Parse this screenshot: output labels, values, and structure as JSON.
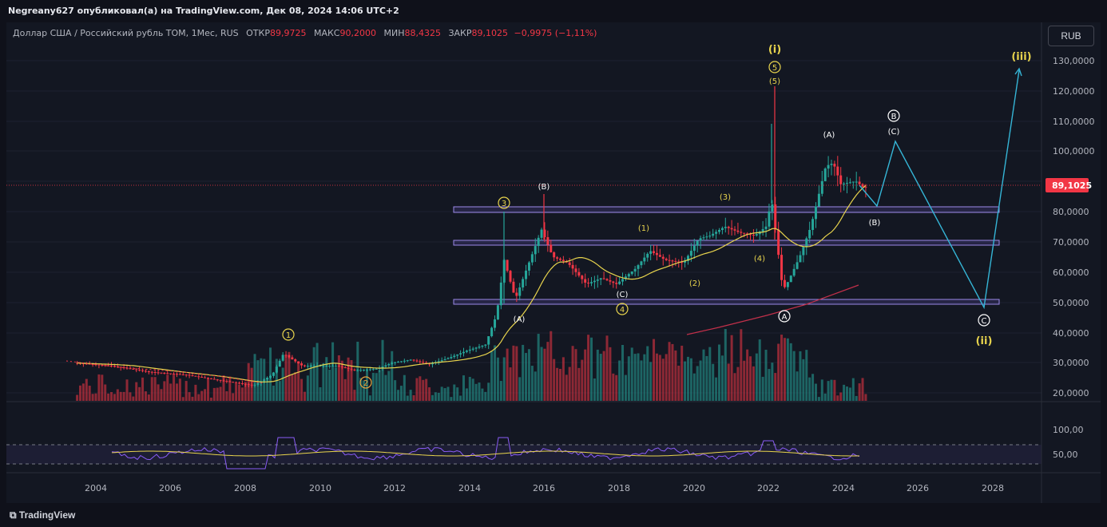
{
  "header": {
    "publisher": "Negreany627 опубликовал(а) на TradingView.com, Дек 08, 2024 14:06 UTC+2"
  },
  "legend": {
    "symbol": "Доллар США / Российский рубль TOM, 1Мес, RUS",
    "open_label": "ОТКР",
    "open_value": "89,9725",
    "high_label": "МАКС",
    "high_value": "90,2000",
    "low_label": "МИН",
    "low_value": "88,4325",
    "close_label": "ЗАКР",
    "close_value": "89,1025",
    "change": "−0,9975 (−1,11%)"
  },
  "currency_button": "RUB",
  "price_axis": {
    "labels": [
      "130,0000",
      "120,0000",
      "110,0000",
      "100,0000",
      "80,0000",
      "70,0000",
      "60,0000",
      "50,0000",
      "40,0000",
      "30,0000",
      "20,0000"
    ],
    "current_price": "89,1025"
  },
  "rsi_axis": {
    "labels": [
      "100,00",
      "50,00"
    ]
  },
  "time_axis": {
    "labels": [
      "2004",
      "2006",
      "2008",
      "2010",
      "2012",
      "2014",
      "2016",
      "2018",
      "2020",
      "2022",
      "2024",
      "2026",
      "2028"
    ]
  },
  "wave_labels": {
    "w1": "1",
    "w2": "2",
    "w3": "3",
    "w4": "4",
    "w5": "5",
    "A_low": "(A)",
    "B_top": "(B)",
    "C_low": "(C)",
    "p1": "(1)",
    "p2": "(2)",
    "p3": "(3)",
    "p4": "(4)",
    "p5": "(5)",
    "circA": "A",
    "circB": "B",
    "circC": "C",
    "A2": "(A)",
    "B2": "(B)",
    "C2": "(C)",
    "i": "(i)",
    "ii": "(ii)",
    "iii": "(iii)"
  },
  "footer": {
    "brand": "TradingView"
  },
  "colors": {
    "up": "#26a69a",
    "down": "#f23645",
    "ma": "#e8d44d",
    "ma_long": "#c2304a",
    "zone": "#9c8ae8",
    "projection": "#35b5d6",
    "wave": "#e8d44d"
  }
}
